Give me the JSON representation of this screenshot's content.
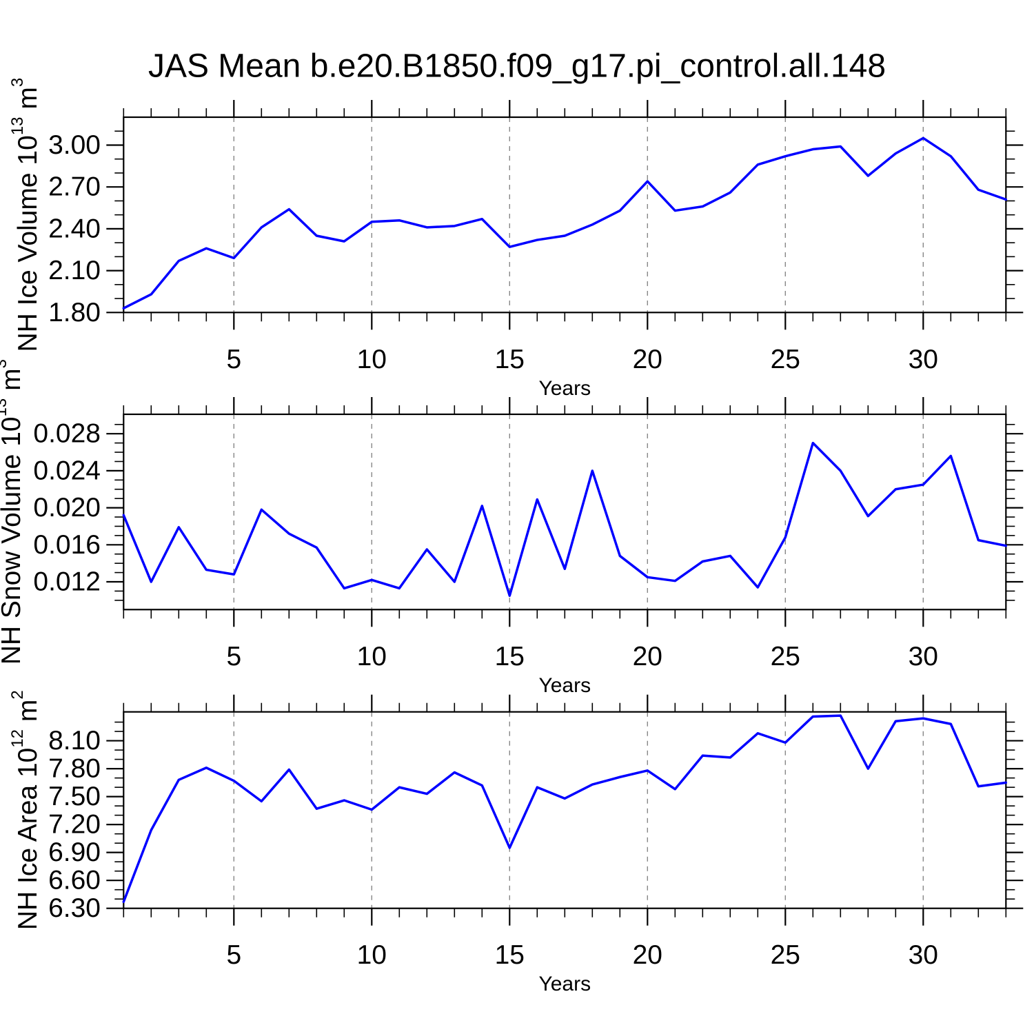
{
  "title": "JAS Mean b.e20.B1850.f09_g17.pi_control.all.148",
  "style": {
    "line_color": "#0000ff",
    "grid_color": "#878787",
    "axis_color": "#000000",
    "background": "#ffffff"
  },
  "chart_data": [
    {
      "type": "line",
      "name": "nh-ice-volume",
      "ylabel_text": "NH Ice Volume 10^13 m^3",
      "ylabel_segments": [
        {
          "t": "NH Ice Volume 10"
        },
        {
          "sup": "13"
        },
        {
          "t": " m"
        },
        {
          "sup": "3"
        }
      ],
      "xlabel": "Years",
      "legend": null,
      "grid": "vertical-dashed",
      "x": [
        1,
        2,
        3,
        4,
        5,
        6,
        7,
        8,
        9,
        10,
        11,
        12,
        13,
        14,
        15,
        16,
        17,
        18,
        19,
        20,
        21,
        22,
        23,
        24,
        25,
        26,
        27,
        28,
        29,
        30,
        31,
        32,
        33
      ],
      "values": [
        1.83,
        1.93,
        2.17,
        2.26,
        2.19,
        2.41,
        2.54,
        2.35,
        2.31,
        2.45,
        2.46,
        2.41,
        2.42,
        2.47,
        2.27,
        2.32,
        2.35,
        2.43,
        2.53,
        2.74,
        2.53,
        2.56,
        2.66,
        2.86,
        2.92,
        2.97,
        2.99,
        2.78,
        2.94,
        3.05,
        2.92,
        2.68,
        2.61
      ],
      "xlim": [
        1,
        33
      ],
      "ylim": [
        1.8,
        3.2
      ],
      "xticks": [
        5,
        10,
        15,
        20,
        25,
        30
      ],
      "xtick_labels": [
        "5",
        "10",
        "15",
        "20",
        "25",
        "30"
      ],
      "x_minor_step": 1,
      "yticks": [
        1.8,
        2.1,
        2.4,
        2.7,
        3.0
      ],
      "ytick_labels": [
        "1.80",
        "2.10",
        "2.40",
        "2.70",
        "3.00"
      ],
      "y_minor_step": 0.1
    },
    {
      "type": "line",
      "name": "nh-snow-volume",
      "ylabel_text": "NH Snow Volume 10^13 m^3",
      "ylabel_segments": [
        {
          "t": "NH Snow Volume 10"
        },
        {
          "sup": "13"
        },
        {
          "t": " m"
        },
        {
          "sup": "3"
        }
      ],
      "xlabel": "Years",
      "legend": null,
      "grid": "vertical-dashed",
      "x": [
        1,
        2,
        3,
        4,
        5,
        6,
        7,
        8,
        9,
        10,
        11,
        12,
        13,
        14,
        15,
        16,
        17,
        18,
        19,
        20,
        21,
        22,
        23,
        24,
        25,
        26,
        27,
        28,
        29,
        30,
        31,
        32,
        33
      ],
      "values": [
        0.0192,
        0.012,
        0.0179,
        0.0133,
        0.0128,
        0.0198,
        0.0172,
        0.0157,
        0.0113,
        0.0122,
        0.0113,
        0.0155,
        0.012,
        0.0202,
        0.0105,
        0.0209,
        0.0134,
        0.024,
        0.0148,
        0.0125,
        0.0121,
        0.0142,
        0.0148,
        0.0114,
        0.0168,
        0.027,
        0.024,
        0.0191,
        0.022,
        0.0225,
        0.0256,
        0.0165,
        0.0159
      ],
      "xlim": [
        1,
        33
      ],
      "ylim": [
        0.009,
        0.0301
      ],
      "xticks": [
        5,
        10,
        15,
        20,
        25,
        30
      ],
      "xtick_labels": [
        "5",
        "10",
        "15",
        "20",
        "25",
        "30"
      ],
      "x_minor_step": 1,
      "yticks": [
        0.012,
        0.016,
        0.02,
        0.024,
        0.028
      ],
      "ytick_labels": [
        "0.012",
        "0.016",
        "0.020",
        "0.024",
        "0.028"
      ],
      "y_minor_step": 0.001
    },
    {
      "type": "line",
      "name": "nh-ice-area",
      "ylabel_text": "NH Ice Area 10^12 m^2",
      "ylabel_segments": [
        {
          "t": "NH Ice Area 10"
        },
        {
          "sup": "12"
        },
        {
          "t": " m"
        },
        {
          "sup": "2"
        }
      ],
      "xlabel": "Years",
      "legend": null,
      "grid": "vertical-dashed",
      "x": [
        1,
        2,
        3,
        4,
        5,
        6,
        7,
        8,
        9,
        10,
        11,
        12,
        13,
        14,
        15,
        16,
        17,
        18,
        19,
        20,
        21,
        22,
        23,
        24,
        25,
        26,
        27,
        28,
        29,
        30,
        31,
        32,
        33
      ],
      "values": [
        6.37,
        7.14,
        7.68,
        7.81,
        7.67,
        7.45,
        7.79,
        7.37,
        7.46,
        7.36,
        7.6,
        7.53,
        7.76,
        7.62,
        6.95,
        7.6,
        7.48,
        7.63,
        7.71,
        7.78,
        7.58,
        7.94,
        7.92,
        8.18,
        8.08,
        8.36,
        8.37,
        7.8,
        8.31,
        8.34,
        8.28,
        7.61,
        7.65
      ],
      "xlim": [
        1,
        33
      ],
      "ylim": [
        6.3,
        8.41
      ],
      "xticks": [
        5,
        10,
        15,
        20,
        25,
        30
      ],
      "xtick_labels": [
        "5",
        "10",
        "15",
        "20",
        "25",
        "30"
      ],
      "x_minor_step": 1,
      "yticks": [
        6.3,
        6.6,
        6.9,
        7.2,
        7.5,
        7.8,
        8.1
      ],
      "ytick_labels": [
        "6.30",
        "6.60",
        "6.90",
        "7.20",
        "7.50",
        "7.80",
        "8.10"
      ],
      "y_minor_step": 0.1
    }
  ]
}
